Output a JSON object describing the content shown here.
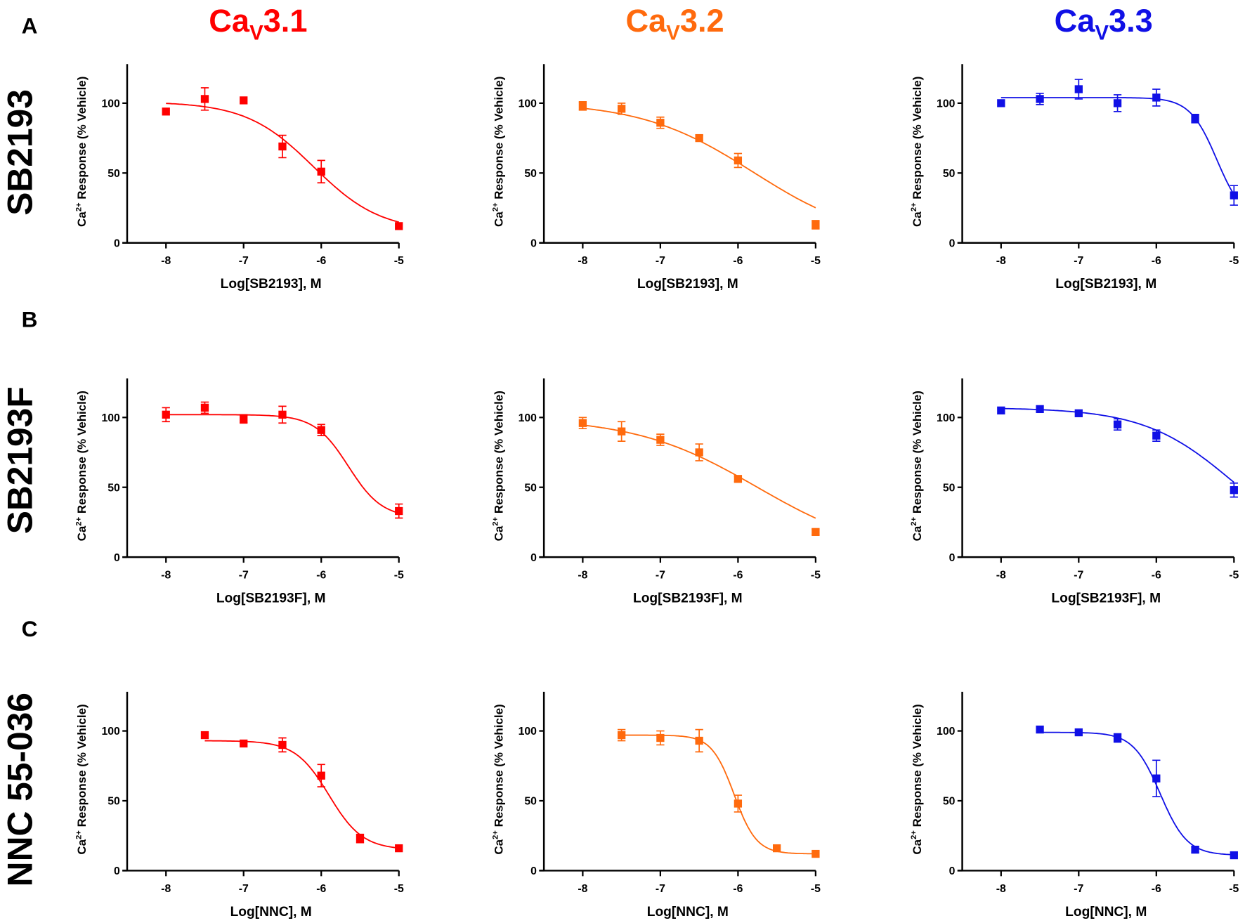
{
  "colors": {
    "Cav3.1": "#ff0000",
    "Cav3.2": "#ff6a0d",
    "Cav3.3": "#1010e6",
    "axis": "#000000"
  },
  "columns": [
    {
      "main": "Ca",
      "sub": "V",
      "rest": "3.1",
      "color": "#ff0000"
    },
    {
      "main": "Ca",
      "sub": "V",
      "rest": "3.2",
      "color": "#ff6a0d"
    },
    {
      "main": "Ca",
      "sub": "V",
      "rest": "3.3",
      "color": "#1010e6"
    }
  ],
  "rows": [
    {
      "letter": "A",
      "compound": "SB2193",
      "xlabel": "Log[SB2193], M"
    },
    {
      "letter": "B",
      "compound": "SB2193F",
      "xlabel": "Log[SB2193F], M"
    },
    {
      "letter": "C",
      "compound": "NNC 55-036",
      "xlabel": "Log[NNC], M"
    }
  ],
  "ylabel": {
    "main": "Ca",
    "sup": "2+",
    "rest": " Response (% Vehicle)"
  },
  "chart_data": [
    {
      "type": "scatter",
      "row": "A",
      "column": "Cav3.1",
      "xlim": [
        -8.5,
        -5
      ],
      "ylim": [
        0,
        128
      ],
      "xticks": [
        "-8",
        "-7",
        "-6",
        "-5"
      ],
      "yticks": [
        "0",
        "50",
        "100"
      ],
      "x": [
        -8,
        -7.5,
        -7,
        -6.5,
        -6,
        -5
      ],
      "y": [
        94,
        103,
        102,
        69,
        51,
        12
      ],
      "err": [
        0,
        8,
        0,
        8,
        8,
        0
      ],
      "fit": {
        "x_range": [
          -8,
          -5
        ],
        "top": 101,
        "bottom": 8,
        "logIC50": -6.1,
        "hill": 1.0
      }
    },
    {
      "type": "scatter",
      "row": "A",
      "column": "Cav3.2",
      "xlim": [
        -8.5,
        -5
      ],
      "ylim": [
        0,
        128
      ],
      "xticks": [
        "-8",
        "-7",
        "-6",
        "-5"
      ],
      "yticks": [
        "0",
        "50",
        "100"
      ],
      "x": [
        -8,
        -7.5,
        -7,
        -6.5,
        -6,
        -5
      ],
      "y": [
        98,
        96,
        86,
        75,
        59,
        13
      ],
      "err": [
        3,
        4,
        4,
        2,
        5,
        3
      ],
      "fit": {
        "x_range": [
          -8,
          -5
        ],
        "top": 101,
        "bottom": 0,
        "logIC50": -5.8,
        "hill": 0.6
      }
    },
    {
      "type": "scatter",
      "row": "A",
      "column": "Cav3.3",
      "xlim": [
        -8.5,
        -5
      ],
      "ylim": [
        0,
        128
      ],
      "xticks": [
        "-8",
        "-7",
        "-6",
        "-5"
      ],
      "yticks": [
        "0",
        "50",
        "100"
      ],
      "x": [
        -8,
        -7.5,
        -7,
        -6.5,
        -6,
        -5.5,
        -5
      ],
      "y": [
        100,
        103,
        110,
        100,
        104,
        89,
        34
      ],
      "err": [
        0,
        4,
        7,
        6,
        6,
        3,
        7
      ],
      "fit": {
        "x_range": [
          -8,
          -5
        ],
        "top": 104,
        "bottom": 15,
        "logIC50": -5.22,
        "hill": 2.5
      }
    },
    {
      "type": "scatter",
      "row": "B",
      "column": "Cav3.1",
      "xlim": [
        -8.5,
        -5
      ],
      "ylim": [
        0,
        128
      ],
      "xticks": [
        "-8",
        "-7",
        "-6",
        "-5"
      ],
      "yticks": [
        "0",
        "50",
        "100"
      ],
      "x": [
        -8,
        -7.5,
        -7,
        -6.5,
        -6,
        -5
      ],
      "y": [
        102,
        107,
        99,
        102,
        91,
        33
      ],
      "err": [
        5,
        4,
        3,
        6,
        4,
        5
      ],
      "fit": {
        "x_range": [
          -8,
          -5
        ],
        "top": 102,
        "bottom": 28,
        "logIC50": -5.65,
        "hill": 2.0
      }
    },
    {
      "type": "scatter",
      "row": "B",
      "column": "Cav3.2",
      "xlim": [
        -8.5,
        -5
      ],
      "ylim": [
        0,
        128
      ],
      "xticks": [
        "-8",
        "-7",
        "-6",
        "-5"
      ],
      "yticks": [
        "0",
        "50",
        "100"
      ],
      "x": [
        -8,
        -7.5,
        -7,
        -6.5,
        -6,
        -5
      ],
      "y": [
        96,
        90,
        84,
        75,
        56,
        18
      ],
      "err": [
        4,
        7,
        4,
        6,
        2,
        2
      ],
      "fit": {
        "x_range": [
          -8,
          -5
        ],
        "top": 100,
        "bottom": 0,
        "logIC50": -5.75,
        "hill": 0.55
      }
    },
    {
      "type": "scatter",
      "row": "B",
      "column": "Cav3.3",
      "xlim": [
        -8.5,
        -5
      ],
      "ylim": [
        0,
        128
      ],
      "xticks": [
        "-8",
        "-7",
        "-6",
        "-5"
      ],
      "yticks": [
        "0",
        "50",
        "100"
      ],
      "x": [
        -8,
        -7.5,
        -7,
        -6.5,
        -6,
        -5
      ],
      "y": [
        105,
        106,
        103,
        95,
        87,
        48
      ],
      "err": [
        0,
        0,
        0,
        4,
        4,
        5
      ],
      "fit": {
        "x_range": [
          -8,
          -5
        ],
        "top": 107,
        "bottom": 0,
        "logIC50": -5.0,
        "hill": 0.75
      }
    },
    {
      "type": "scatter",
      "row": "C",
      "column": "Cav3.1",
      "xlim": [
        -8.5,
        -5
      ],
      "ylim": [
        0,
        128
      ],
      "xticks": [
        "-8",
        "-7",
        "-6",
        "-5"
      ],
      "yticks": [
        "0",
        "50",
        "100"
      ],
      "x": [
        -7.5,
        -7,
        -6.5,
        -6,
        -5.5,
        -5
      ],
      "y": [
        97,
        91,
        90,
        68,
        23,
        16
      ],
      "err": [
        0,
        0,
        5,
        8,
        3,
        0
      ],
      "fit": {
        "x_range": [
          -7.5,
          -5
        ],
        "top": 93,
        "bottom": 15,
        "logIC50": -5.9,
        "hill": 2.0
      }
    },
    {
      "type": "scatter",
      "row": "C",
      "column": "Cav3.2",
      "xlim": [
        -8.5,
        -5
      ],
      "ylim": [
        0,
        128
      ],
      "xticks": [
        "-8",
        "-7",
        "-6",
        "-5"
      ],
      "yticks": [
        "0",
        "50",
        "100"
      ],
      "x": [
        -7.5,
        -7,
        -6.5,
        -6,
        -5.5,
        -5
      ],
      "y": [
        97,
        95,
        93,
        48,
        16,
        12
      ],
      "err": [
        4,
        5,
        8,
        6,
        0,
        0
      ],
      "fit": {
        "x_range": [
          -7.5,
          -5
        ],
        "top": 97,
        "bottom": 12,
        "logIC50": -6.05,
        "hill": 3.0
      }
    },
    {
      "type": "scatter",
      "row": "C",
      "column": "Cav3.3",
      "xlim": [
        -8.5,
        -5
      ],
      "ylim": [
        0,
        128
      ],
      "xticks": [
        "-8",
        "-7",
        "-6",
        "-5"
      ],
      "yticks": [
        "0",
        "50",
        "100"
      ],
      "x": [
        -7.5,
        -7,
        -6.5,
        -6,
        -5.5,
        -5
      ],
      "y": [
        101,
        99,
        95,
        66,
        15,
        11
      ],
      "err": [
        0,
        0,
        3,
        13,
        2,
        0
      ],
      "fit": {
        "x_range": [
          -7.5,
          -5
        ],
        "top": 99,
        "bottom": 11,
        "logIC50": -5.95,
        "hill": 2.5
      }
    }
  ]
}
